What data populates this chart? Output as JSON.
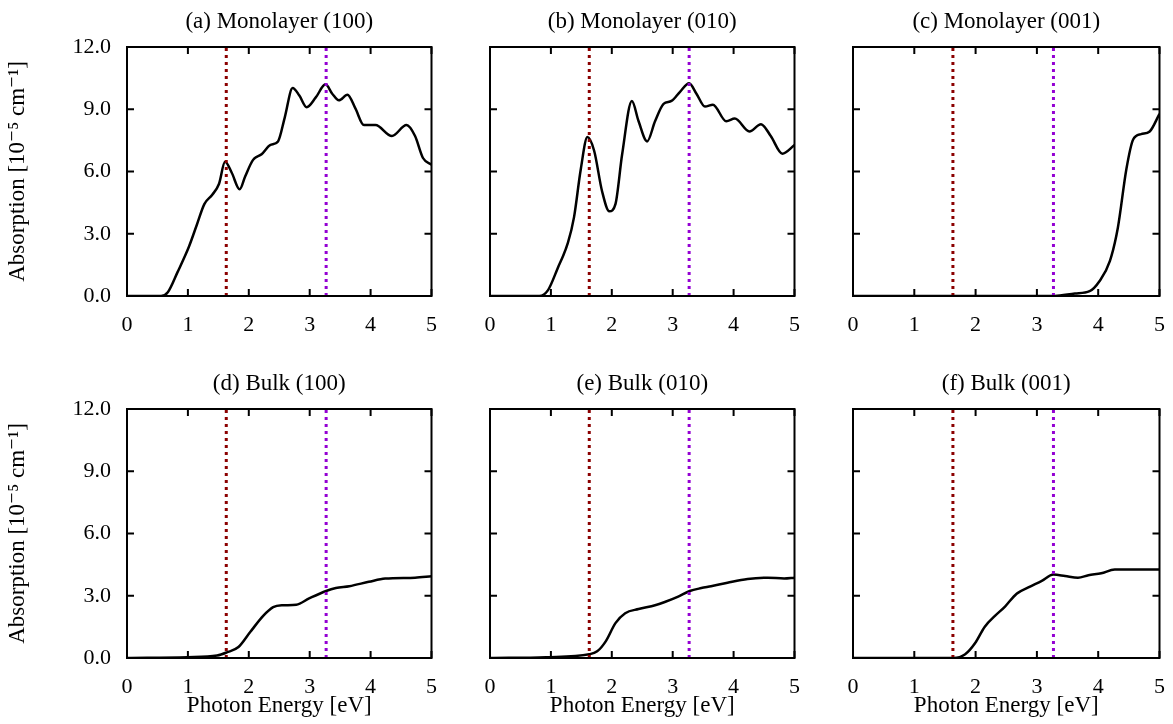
{
  "chart_data": [
    {
      "type": "line",
      "title": "(a) Monolayer (100)",
      "ylabel": "Absorption [10⁻⁵ cm⁻¹]",
      "xlim": [
        0,
        5
      ],
      "ylim": [
        0,
        12
      ],
      "xticks": [
        0,
        1,
        2,
        3,
        4,
        5
      ],
      "yticks": [
        {
          "value": 0,
          "label": "0.0"
        },
        {
          "value": 3,
          "label": "3.0"
        },
        {
          "value": 6,
          "label": "6.0"
        },
        {
          "value": 9,
          "label": "9.0"
        },
        {
          "value": 12,
          "label": "12.0"
        }
      ],
      "ref_lines": [
        {
          "axis": "x",
          "value": 1.63,
          "color": "#8b0000",
          "line_style": "dotted"
        },
        {
          "axis": "x",
          "value": 3.27,
          "color": "#9400d3",
          "line_style": "dotted"
        }
      ],
      "series": [
        {
          "color": "#000000",
          "x": [
            0,
            0.56,
            0.67,
            0.83,
            1.02,
            1.15,
            1.27,
            1.4,
            1.51,
            1.61,
            1.72,
            1.85,
            1.94,
            2.07,
            2.21,
            2.35,
            2.48,
            2.59,
            2.72,
            2.83,
            2.95,
            3.1,
            3.26,
            3.37,
            3.48,
            3.62,
            3.75,
            3.89,
            4.08,
            4.35,
            4.59,
            4.73,
            4.86,
            5
          ],
          "values": [
            0,
            0,
            0.18,
            1.15,
            2.4,
            3.46,
            4.43,
            4.88,
            5.4,
            6.47,
            5.94,
            5.14,
            5.76,
            6.56,
            6.83,
            7.27,
            7.45,
            8.6,
            10.02,
            9.66,
            9.1,
            9.57,
            10.2,
            9.75,
            9.43,
            9.7,
            9.04,
            8.24,
            8.24,
            7.71,
            8.24,
            7.71,
            6.65,
            6.33
          ]
        }
      ]
    },
    {
      "type": "line",
      "title": "(b) Monolayer (010)",
      "xlim": [
        0,
        5
      ],
      "ylim": [
        0,
        12
      ],
      "xticks": [
        0,
        1,
        2,
        3,
        4,
        5
      ],
      "yticks": [
        0,
        3,
        6,
        9,
        12
      ],
      "tick_labels": "x",
      "ref_lines": [
        {
          "axis": "x",
          "value": 1.63,
          "color": "#8b0000",
          "line_style": "dotted"
        },
        {
          "axis": "x",
          "value": 3.27,
          "color": "#9400d3",
          "line_style": "dotted"
        }
      ],
      "series": [
        {
          "color": "#000000",
          "x": [
            0,
            0.81,
            0.95,
            1.11,
            1.28,
            1.38,
            1.49,
            1.6,
            1.71,
            1.84,
            1.96,
            2.06,
            2.17,
            2.33,
            2.44,
            2.58,
            2.71,
            2.85,
            2.98,
            3.12,
            3.27,
            3.39,
            3.53,
            3.66,
            3.88,
            4.02,
            4.26,
            4.45,
            4.61,
            4.8,
            5
          ],
          "values": [
            0,
            0,
            0.27,
            1.33,
            2.57,
            3.8,
            6.1,
            7.66,
            7.0,
            5.05,
            4.08,
            4.43,
            6.83,
            9.4,
            8.42,
            7.45,
            8.42,
            9.26,
            9.4,
            9.84,
            10.25,
            9.75,
            9.13,
            9.22,
            8.42,
            8.55,
            7.93,
            8.28,
            7.71,
            6.86,
            7.27
          ]
        }
      ]
    },
    {
      "type": "line",
      "title": "(c) Monolayer (001)",
      "xlim": [
        0,
        5
      ],
      "ylim": [
        0,
        12
      ],
      "xticks": [
        0,
        1,
        2,
        3,
        4,
        5
      ],
      "yticks": [
        0,
        3,
        6,
        9,
        12
      ],
      "tick_labels": "x",
      "ref_lines": [
        {
          "axis": "x",
          "value": 1.63,
          "color": "#8b0000",
          "line_style": "dotted"
        },
        {
          "axis": "x",
          "value": 3.27,
          "color": "#9400d3",
          "line_style": "dotted"
        }
      ],
      "series": [
        {
          "color": "#000000",
          "x": [
            0,
            3.29,
            3.62,
            3.86,
            4.02,
            4.19,
            4.32,
            4.46,
            4.57,
            4.7,
            4.84,
            5
          ],
          "values": [
            0,
            0,
            0.12,
            0.23,
            0.71,
            1.68,
            3.28,
            6.12,
            7.54,
            7.8,
            7.93,
            8.78
          ]
        }
      ]
    },
    {
      "type": "line",
      "title": "(d) Bulk (100)",
      "xlabel": "Photon Energy [eV]",
      "ylabel": "Absorption [10⁻⁵ cm⁻¹]",
      "xlim": [
        0,
        5
      ],
      "ylim": [
        0,
        12
      ],
      "xticks": [
        0,
        1,
        2,
        3,
        4,
        5
      ],
      "yticks": [
        {
          "value": 0,
          "label": "0.0"
        },
        {
          "value": 3,
          "label": "3.0"
        },
        {
          "value": 6,
          "label": "6.0"
        },
        {
          "value": 9,
          "label": "9.0"
        },
        {
          "value": 12,
          "label": "12.0"
        }
      ],
      "ref_lines": [
        {
          "axis": "x",
          "value": 1.63,
          "color": "#8b0000",
          "line_style": "dotted"
        },
        {
          "axis": "x",
          "value": 3.27,
          "color": "#9400d3",
          "line_style": "dotted"
        }
      ],
      "series": [
        {
          "color": "#000000",
          "x": [
            0,
            0.99,
            1.48,
            1.64,
            1.83,
            2.02,
            2.24,
            2.4,
            2.56,
            2.78,
            2.99,
            3.27,
            3.43,
            3.65,
            3.97,
            4.24,
            4.73,
            5
          ],
          "values": [
            0,
            0.04,
            0.12,
            0.27,
            0.53,
            1.24,
            2.04,
            2.45,
            2.54,
            2.57,
            2.87,
            3.23,
            3.37,
            3.46,
            3.67,
            3.83,
            3.87,
            3.94
          ]
        }
      ]
    },
    {
      "type": "line",
      "title": "(e) Bulk (010)",
      "xlabel": "Photon Energy [eV]",
      "xlim": [
        0,
        5
      ],
      "ylim": [
        0,
        12
      ],
      "xticks": [
        0,
        1,
        2,
        3,
        4,
        5
      ],
      "yticks": [
        0,
        3,
        6,
        9,
        12
      ],
      "tick_labels": "x",
      "ref_lines": [
        {
          "axis": "x",
          "value": 1.63,
          "color": "#8b0000",
          "line_style": "dotted"
        },
        {
          "axis": "x",
          "value": 3.27,
          "color": "#9400d3",
          "line_style": "dotted"
        }
      ],
      "series": [
        {
          "color": "#000000",
          "x": [
            0,
            0.92,
            1.63,
            1.76,
            1.9,
            2.06,
            2.22,
            2.44,
            2.71,
            2.87,
            3.09,
            3.28,
            3.47,
            3.63,
            3.9,
            4.23,
            4.56,
            4.83,
            5
          ],
          "values": [
            0,
            0.04,
            0.18,
            0.32,
            0.8,
            1.68,
            2.16,
            2.36,
            2.54,
            2.7,
            2.96,
            3.23,
            3.37,
            3.46,
            3.63,
            3.81,
            3.87,
            3.83,
            3.87
          ]
        }
      ]
    },
    {
      "type": "line",
      "title": "(f) Bulk (001)",
      "xlabel": "Photon Energy [eV]",
      "xlim": [
        0,
        5
      ],
      "ylim": [
        0,
        12
      ],
      "xticks": [
        0,
        1,
        2,
        3,
        4,
        5
      ],
      "yticks": [
        0,
        3,
        6,
        9,
        12
      ],
      "tick_labels": "x",
      "ref_lines": [
        {
          "axis": "x",
          "value": 1.63,
          "color": "#8b0000",
          "line_style": "dotted"
        },
        {
          "axis": "x",
          "value": 3.27,
          "color": "#9400d3",
          "line_style": "dotted"
        }
      ],
      "series": [
        {
          "color": "#000000",
          "x": [
            0,
            1.64,
            1.83,
            1.99,
            2.15,
            2.32,
            2.48,
            2.67,
            2.86,
            3.08,
            3.27,
            3.46,
            3.67,
            3.84,
            4.05,
            4.27,
            4.59,
            5
          ],
          "values": [
            0,
            0,
            0.18,
            0.71,
            1.51,
            2.04,
            2.48,
            3.1,
            3.4,
            3.72,
            4.02,
            3.95,
            3.87,
            3.99,
            4.08,
            4.26,
            4.26,
            4.26
          ]
        }
      ]
    }
  ]
}
